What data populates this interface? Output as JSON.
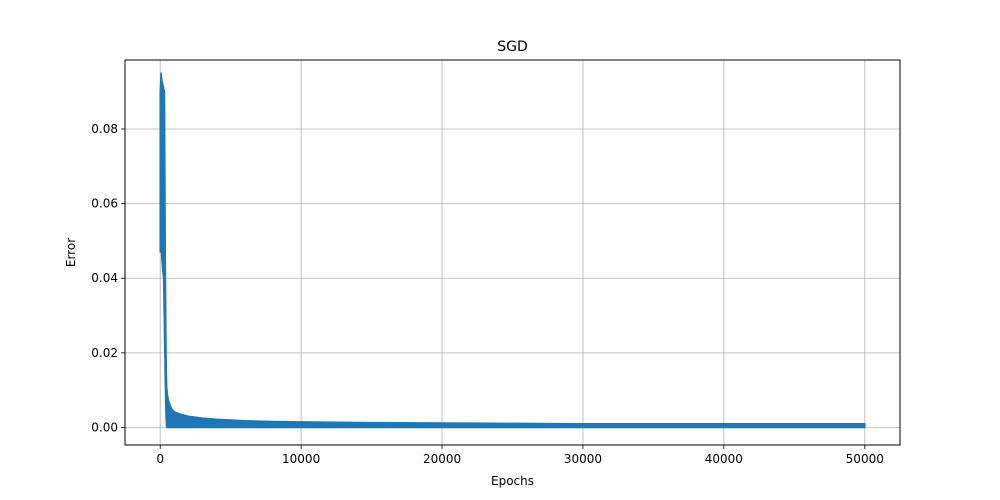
{
  "chart_data": {
    "type": "line",
    "title": "SGD",
    "xlabel": "Epochs",
    "ylabel": "Error",
    "xlim": [
      -2500,
      52500
    ],
    "ylim": [
      -0.0047,
      0.0985
    ],
    "grid": true,
    "x_ticks": [
      0,
      10000,
      20000,
      30000,
      40000,
      50000
    ],
    "x_tick_labels": [
      "0",
      "10000",
      "20000",
      "30000",
      "40000",
      "50000"
    ],
    "y_ticks": [
      0.0,
      0.02,
      0.04,
      0.06,
      0.08
    ],
    "y_tick_labels": [
      "0.00",
      "0.02",
      "0.04",
      "0.06",
      "0.08"
    ],
    "series": [
      {
        "color": "#1f77b4",
        "x": [
          0,
          60,
          120,
          180,
          240,
          300,
          360,
          400,
          430,
          460,
          500,
          600,
          800,
          1000,
          1500,
          2000,
          3000,
          4000,
          5000,
          6000,
          8000,
          10000,
          15000,
          20000,
          25000,
          30000,
          35000,
          40000,
          45000,
          50000
        ],
        "y_upper": [
          0.09,
          0.095,
          0.093,
          0.092,
          0.091,
          0.09,
          0.045,
          0.025,
          0.015,
          0.011,
          0.009,
          0.007,
          0.005,
          0.0042,
          0.0035,
          0.003,
          0.0025,
          0.0022,
          0.002,
          0.0018,
          0.0016,
          0.0015,
          0.0013,
          0.0012,
          0.0011,
          0.001,
          0.001,
          0.001,
          0.001,
          0.001
        ],
        "y_lower": [
          0.047,
          0.05,
          0.045,
          0.042,
          0.04,
          0.025,
          0.012,
          0.004,
          0.001,
          0.0,
          0.0,
          0.0,
          0.0,
          0.0,
          0.0,
          0.0,
          0.0,
          0.0,
          0.0,
          0.0,
          0.0,
          0.0,
          0.0,
          0.0,
          0.0,
          0.0,
          0.0,
          0.0,
          0.0,
          0.0
        ]
      }
    ]
  }
}
